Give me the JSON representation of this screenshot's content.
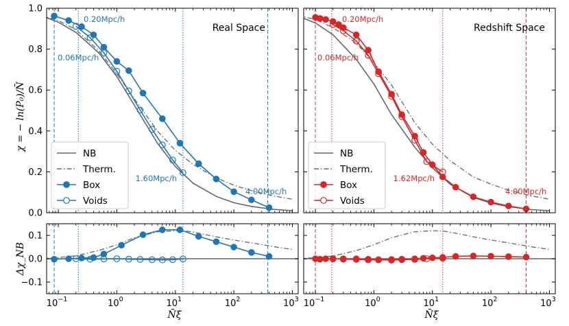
{
  "chart_data": [
    {
      "type": "line",
      "title": "Real Space",
      "xscale": "log",
      "xlim_log10": [
        -1.2,
        3.1
      ],
      "ylim": [
        0,
        1.0
      ],
      "ylabel": "χ = − ln(P₀)/N̄",
      "yticks": [
        "0.0",
        "0.2",
        "0.4",
        "0.6",
        "0.8",
        "1.0"
      ],
      "color": "#1f77b4",
      "legend": [
        "NB",
        "Therm.",
        "Box",
        "Voids"
      ],
      "legend_placement": "lower-left",
      "vlines": [
        {
          "x": 0.085,
          "style": "dashed",
          "label": "0.06Mpc/h"
        },
        {
          "x": 0.22,
          "style": "dotted",
          "label": "0.20Mpc/h"
        },
        {
          "x": 13.5,
          "style": "dotted",
          "label": "1.60Mpc/h"
        },
        {
          "x": 380,
          "style": "dashed",
          "label": "4.00Mpc/h"
        }
      ],
      "series": [
        {
          "name": "NB",
          "x": [
            0.05,
            0.1,
            0.2,
            0.5,
            1,
            2,
            5,
            10,
            20,
            50,
            100,
            200,
            500,
            1000
          ],
          "y": [
            0.964,
            0.932,
            0.882,
            0.78,
            0.666,
            0.525,
            0.338,
            0.226,
            0.145,
            0.08,
            0.049,
            0.031,
            0.016,
            0.01
          ]
        },
        {
          "name": "Therm.",
          "x": [
            0.05,
            0.1,
            0.2,
            0.5,
            1,
            2,
            5,
            10,
            20,
            50,
            100,
            200,
            500,
            1000
          ],
          "y": [
            0.965,
            0.94,
            0.895,
            0.79,
            0.68,
            0.556,
            0.398,
            0.305,
            0.237,
            0.17,
            0.135,
            0.108,
            0.081,
            0.066
          ]
        },
        {
          "name": "Box",
          "x": [
            0.085,
            0.15,
            0.25,
            0.4,
            0.6,
            1.0,
            1.6,
            2.8,
            6,
            12,
            25,
            50,
            100,
            200,
            400
          ],
          "y": [
            0.962,
            0.94,
            0.91,
            0.87,
            0.81,
            0.74,
            0.695,
            0.585,
            0.46,
            0.34,
            0.24,
            0.165,
            0.103,
            0.063,
            0.025
          ]
        },
        {
          "name": "Voids",
          "x": [
            0.2,
            0.35,
            0.6,
            1.0,
            1.6,
            2.5,
            4.0,
            6.0,
            9.0,
            13.5
          ],
          "y": [
            0.912,
            0.856,
            0.782,
            0.692,
            0.596,
            0.502,
            0.408,
            0.332,
            0.258,
            0.196
          ]
        }
      ],
      "delta": {
        "ylabel": "Δχ_NB",
        "ylim": [
          -0.15,
          0.15
        ],
        "yticks": [
          "−0.1",
          "0.0",
          "0.1"
        ],
        "series": [
          {
            "name": "Therm.",
            "x": [
              0.05,
              0.1,
              0.2,
              0.5,
              1,
              2,
              5,
              10,
              15,
              20,
              50,
              100,
              200,
              500,
              1000
            ],
            "y": [
              0.001,
              0.005,
              0.013,
              0.036,
              0.06,
              0.09,
              0.116,
              0.12,
              0.119,
              0.114,
              0.094,
              0.08,
              0.068,
              0.051,
              0.04
            ]
          },
          {
            "name": "Box",
            "x": [
              0.085,
              0.15,
              0.25,
              0.4,
              0.6,
              1.2,
              2.8,
              6,
              12,
              25,
              50,
              100,
              200,
              400
            ],
            "y": [
              -0.002,
              0.0,
              0.003,
              0.005,
              0.02,
              0.058,
              0.103,
              0.124,
              0.124,
              0.096,
              0.073,
              0.05,
              0.027,
              0.01
            ]
          },
          {
            "name": "Voids",
            "x": [
              0.2,
              0.35,
              0.6,
              1.0,
              1.6,
              2.5,
              4.0,
              6.0,
              9.0,
              13.5
            ],
            "y": [
              0.0,
              -0.002,
              -0.001,
              0.0,
              -0.002,
              -0.003,
              -0.004,
              -0.005,
              -0.004,
              -0.001
            ]
          }
        ]
      }
    },
    {
      "type": "line",
      "title": "Redshift Space",
      "xscale": "log",
      "xlim_log10": [
        -1.2,
        3.1
      ],
      "ylim": [
        0,
        1.0
      ],
      "yticks": [
        "0.0",
        "0.2",
        "0.4",
        "0.6",
        "0.8",
        "1.0"
      ],
      "color": "#d62728",
      "legend": [
        "NB",
        "Therm.",
        "Box",
        "Voids"
      ],
      "legend_placement": "lower-left",
      "vlines": [
        {
          "x": 0.1,
          "style": "dashed",
          "label": "0.06Mpc/h"
        },
        {
          "x": 0.19,
          "style": "dotted",
          "label": "0.20Mpc/h"
        },
        {
          "x": 15,
          "style": "dotted",
          "label": "1.62Mpc/h"
        },
        {
          "x": 400,
          "style": "dashed",
          "label": "4.00Mpc/h"
        }
      ],
      "series": [
        {
          "name": "NB",
          "x": [
            0.05,
            0.1,
            0.2,
            0.5,
            1,
            2,
            5,
            10,
            20,
            50,
            100,
            200,
            500,
            1000
          ],
          "y": [
            0.962,
            0.928,
            0.87,
            0.75,
            0.63,
            0.48,
            0.32,
            0.22,
            0.14,
            0.075,
            0.047,
            0.03,
            0.015,
            0.01
          ]
        },
        {
          "name": "Therm.",
          "x": [
            0.05,
            0.1,
            0.2,
            0.5,
            1,
            2,
            5,
            10,
            20,
            50,
            100,
            200,
            500,
            1000
          ],
          "y": [
            0.965,
            0.945,
            0.905,
            0.83,
            0.735,
            0.625,
            0.44,
            0.335,
            0.255,
            0.175,
            0.14,
            0.11,
            0.082,
            0.066
          ]
        },
        {
          "name": "Box",
          "x": [
            0.1,
            0.12,
            0.15,
            0.2,
            0.25,
            0.3,
            0.5,
            0.8,
            1.2,
            2,
            3,
            5,
            7,
            10,
            15,
            25,
            50,
            100,
            200,
            400
          ],
          "y": [
            0.955,
            0.95,
            0.945,
            0.935,
            0.92,
            0.905,
            0.87,
            0.795,
            0.69,
            0.58,
            0.48,
            0.375,
            0.295,
            0.235,
            0.175,
            0.125,
            0.078,
            0.052,
            0.033,
            0.019
          ]
        },
        {
          "name": "Voids",
          "x": [
            0.2,
            0.3,
            0.5,
            0.8,
            1.2,
            2,
            3,
            5,
            8,
            15
          ],
          "y": [
            0.92,
            0.89,
            0.84,
            0.77,
            0.68,
            0.57,
            0.47,
            0.355,
            0.25,
            0.2
          ]
        }
      ],
      "delta": {
        "ylim": [
          -0.15,
          0.15
        ],
        "series": [
          {
            "name": "Therm.",
            "x": [
              0.05,
              0.1,
              0.2,
              0.5,
              1,
              2,
              5,
              10,
              15,
              20,
              50,
              100,
              200,
              500,
              1000
            ],
            "y": [
              0.001,
              0.004,
              0.012,
              0.035,
              0.06,
              0.09,
              0.116,
              0.12,
              0.119,
              0.114,
              0.094,
              0.08,
              0.068,
              0.051,
              0.04
            ]
          },
          {
            "name": "Box",
            "x": [
              0.1,
              0.12,
              0.15,
              0.2,
              0.3,
              0.5,
              0.8,
              1.2,
              2,
              3,
              5,
              7,
              10,
              15,
              25,
              50,
              100,
              200,
              400
            ],
            "y": [
              0.0,
              -0.002,
              0.0,
              -0.001,
              0.0,
              0.0,
              -0.002,
              -0.004,
              -0.003,
              -0.002,
              0.0,
              0.002,
              0.004,
              0.006,
              0.01,
              0.012,
              0.011,
              0.009,
              0.007
            ]
          },
          {
            "name": "Voids",
            "x": [
              0.2,
              0.3,
              0.5,
              0.8,
              1.2,
              2,
              3,
              5,
              8,
              15
            ],
            "y": [
              0.0,
              -0.002,
              -0.003,
              -0.005,
              -0.005,
              -0.006,
              -0.004,
              -0.003,
              0.0,
              0.002
            ]
          }
        ]
      }
    }
  ],
  "xlabel": "N̄ξ̄",
  "xtick_labels": [
    [
      "10",
      "−1"
    ],
    [
      "10",
      "0"
    ],
    [
      "10",
      "1"
    ],
    [
      "10",
      "2"
    ],
    [
      "10",
      "3"
    ]
  ]
}
